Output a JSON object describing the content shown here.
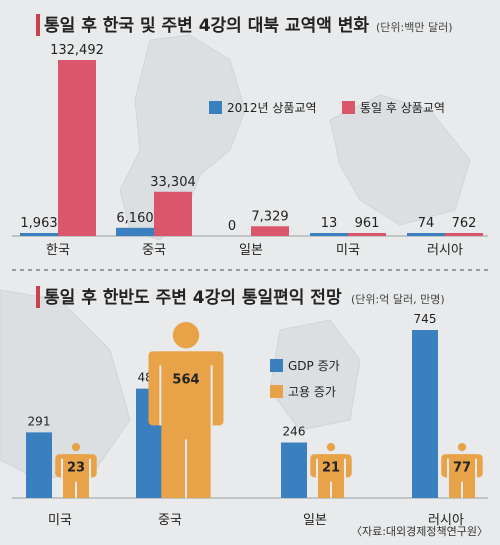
{
  "source": "〈자료:대외경제정책연구원〉",
  "colors": {
    "blue": "#3a7fbe",
    "red": "#d9566b",
    "orange": "#e8a248",
    "bg": "#e8eaeb"
  },
  "chart_data": [
    {
      "type": "bar",
      "title": "통일 후 한국 및 주변 4강의 대북 교역액 변화",
      "unit": "(단위:백만 달러)",
      "categories": [
        "한국",
        "중국",
        "일본",
        "미국",
        "러시아"
      ],
      "series": [
        {
          "name": "2012년 상품교역",
          "values": [
            1963,
            6160,
            0,
            13,
            74
          ],
          "labels": [
            "1,963",
            "6,160",
            "0",
            "13",
            "74"
          ]
        },
        {
          "name": "통일 후 상품교역",
          "values": [
            132492,
            33304,
            7329,
            961,
            762
          ],
          "labels": [
            "132,492",
            "33,304",
            "7,329",
            "961",
            "762"
          ]
        }
      ],
      "legend_position": "top-right"
    },
    {
      "type": "bar",
      "title": "통일 후 한반도 주변 4강의 통일편익 전망",
      "unit": "(단위:억 달러, 만명)",
      "categories": [
        "미국",
        "중국",
        "일본",
        "러시아"
      ],
      "series": [
        {
          "name": "GDP 증가",
          "values": [
            291,
            485,
            246,
            745
          ]
        },
        {
          "name": "고용 증가",
          "values": [
            23,
            564,
            21,
            77
          ]
        }
      ],
      "legend_position": "center-right"
    }
  ]
}
